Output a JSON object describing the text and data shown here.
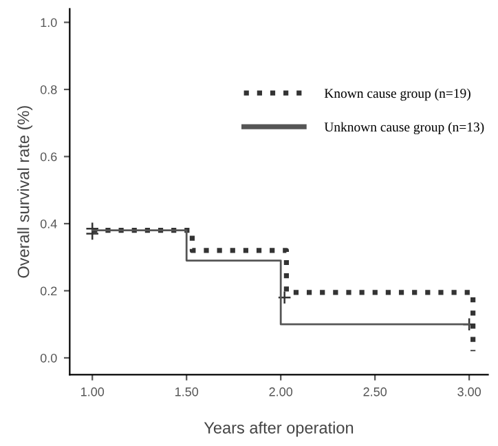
{
  "chart_data": {
    "type": "step",
    "xlabel": "Years after operation",
    "ylabel": "Overall survival rate (%)",
    "series": [
      {
        "name": "Known cause group (n=19)",
        "color": "#333333",
        "line_style": "dotted",
        "x": [
          1.0,
          1.53,
          2.03,
          3.02
        ],
        "values": [
          0.38,
          0.32,
          0.195,
          0.02
        ]
      },
      {
        "name": "Unknown cause group (n=13)",
        "color": "#555555",
        "line_style": "solid",
        "x": [
          1.0,
          1.5,
          2.0,
          3.0
        ],
        "values": [
          0.38,
          0.29,
          0.1,
          0.1
        ]
      },
      {
        "type": "scatter",
        "marker": "cross",
        "color": "#333333",
        "x": [
          1.0,
          1.0,
          2.02,
          3.0
        ],
        "values": [
          0.37,
          0.385,
          0.18,
          0.1
        ]
      }
    ],
    "xlim": [
      0.88,
      3.1
    ],
    "ylim": [
      -0.05,
      1.04
    ],
    "xticks": [
      {
        "value": 1.0,
        "label": "1.00"
      },
      {
        "value": 1.5,
        "label": "1.50"
      },
      {
        "value": 2.0,
        "label": "2.00"
      },
      {
        "value": 2.5,
        "label": "2.50"
      },
      {
        "value": 3.0,
        "label": "3.00"
      }
    ],
    "yticks": [
      {
        "value": 0.0,
        "label": "0.0"
      },
      {
        "value": 0.2,
        "label": "0.2"
      },
      {
        "value": 0.4,
        "label": "0.4"
      },
      {
        "value": 0.6,
        "label": "0.6"
      },
      {
        "value": 0.8,
        "label": "0.8"
      },
      {
        "value": 1.0,
        "label": "1.0"
      }
    ],
    "grid": false,
    "legend": "center right"
  }
}
